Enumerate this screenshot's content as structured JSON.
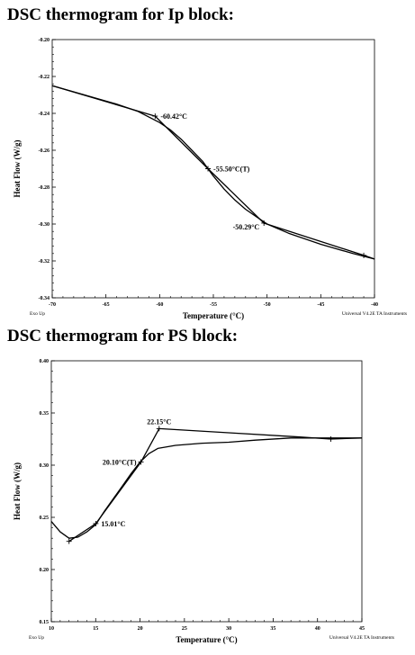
{
  "headings": {
    "ip": "DSC thermogram for Ip block:",
    "ps": "DSC thermogram for PS block:"
  },
  "chart_data": [
    {
      "type": "line",
      "xlabel": "Temperature (°C)",
      "ylabel": "Heat Flow (W/g)",
      "xlim": [
        -70,
        -40
      ],
      "ylim": [
        -0.34,
        -0.2
      ],
      "x_ticks": [
        -70,
        -65,
        -60,
        -55,
        -50,
        -45,
        -40
      ],
      "y_ticks": [
        -0.34,
        -0.32,
        -0.3,
        -0.28,
        -0.26,
        -0.24,
        -0.22,
        -0.2
      ],
      "footer_left": "Exo Up",
      "footer_right": "Universal V4.2E TA Instruments",
      "series": [
        {
          "points": [
            [
              -70,
              -0.225
            ],
            [
              -67,
              -0.23
            ],
            [
              -64,
              -0.235
            ],
            [
              -62,
              -0.239
            ],
            [
              -61,
              -0.242
            ],
            [
              -60,
              -0.245
            ],
            [
              -59,
              -0.249
            ],
            [
              -58,
              -0.254
            ],
            [
              -57,
              -0.26
            ],
            [
              -56,
              -0.266
            ],
            [
              -55.5,
              -0.27
            ],
            [
              -55,
              -0.274
            ],
            [
              -54,
              -0.281
            ],
            [
              -53,
              -0.287
            ],
            [
              -52,
              -0.292
            ],
            [
              -51,
              -0.296
            ],
            [
              -50,
              -0.3
            ],
            [
              -48,
              -0.305
            ],
            [
              -45,
              -0.311
            ],
            [
              -42,
              -0.316
            ],
            [
              -40,
              -0.319
            ]
          ]
        },
        {
          "points": [
            [
              -70,
              -0.225
            ],
            [
              -60.42,
              -0.2415
            ],
            [
              -55.5,
              -0.27
            ],
            [
              -50.29,
              -0.2995
            ],
            [
              -41,
              -0.317
            ],
            [
              -40,
              -0.319
            ]
          ]
        }
      ],
      "annotations": [
        {
          "text": "-60.42°C",
          "x": -60.42,
          "y": -0.2415,
          "anchor": "right"
        },
        {
          "text": "-55.50°C(T)",
          "x": -55.5,
          "y": -0.27,
          "anchor": "right"
        },
        {
          "text": "-50.29°C",
          "x": -50.29,
          "y": -0.2995,
          "anchor": "left"
        }
      ],
      "markers": [
        [
          -60.42,
          -0.2415
        ],
        [
          -55.5,
          -0.27
        ],
        [
          -50.29,
          -0.2995
        ],
        [
          -41,
          -0.317
        ]
      ]
    },
    {
      "type": "line",
      "xlabel": "Temperature (°C)",
      "ylabel": "Heat Flow (W/g)",
      "xlim": [
        10,
        45
      ],
      "ylim": [
        0.15,
        0.4
      ],
      "x_ticks": [
        10,
        15,
        20,
        25,
        30,
        35,
        40,
        45
      ],
      "y_ticks": [
        0.15,
        0.2,
        0.25,
        0.3,
        0.35,
        0.4
      ],
      "footer_left": "Exo Up",
      "footer_right": "Universal V4.2E TA Instruments",
      "series": [
        {
          "points": [
            [
              10,
              0.246
            ],
            [
              11,
              0.236
            ],
            [
              12,
              0.23
            ],
            [
              13,
              0.231
            ],
            [
              14,
              0.236
            ],
            [
              15,
              0.243
            ],
            [
              16,
              0.256
            ],
            [
              17,
              0.268
            ],
            [
              18,
              0.28
            ],
            [
              19,
              0.292
            ],
            [
              20,
              0.303
            ],
            [
              21,
              0.311
            ],
            [
              22,
              0.316
            ],
            [
              24,
              0.319
            ],
            [
              27,
              0.321
            ],
            [
              30,
              0.322
            ],
            [
              33,
              0.324
            ],
            [
              37,
              0.326
            ],
            [
              41,
              0.326
            ],
            [
              45,
              0.326
            ]
          ]
        },
        {
          "points": [
            [
              12,
              0.227
            ],
            [
              15.01,
              0.244
            ],
            [
              20.1,
              0.303
            ],
            [
              22.15,
              0.335
            ],
            [
              30,
              0.331
            ],
            [
              38,
              0.327
            ],
            [
              41.5,
              0.325
            ],
            [
              45,
              0.326
            ]
          ]
        }
      ],
      "annotations": [
        {
          "text": "22.15°C",
          "x": 22.15,
          "y": 0.335,
          "anchor": "above"
        },
        {
          "text": "20.10°C(T)",
          "x": 20.1,
          "y": 0.303,
          "anchor": "left"
        },
        {
          "text": "15.01°C",
          "x": 15.01,
          "y": 0.244,
          "anchor": "right"
        }
      ],
      "markers": [
        [
          12,
          0.227
        ],
        [
          15.01,
          0.244
        ],
        [
          20.1,
          0.303
        ],
        [
          22.15,
          0.335
        ],
        [
          41.5,
          0.325
        ]
      ]
    }
  ]
}
